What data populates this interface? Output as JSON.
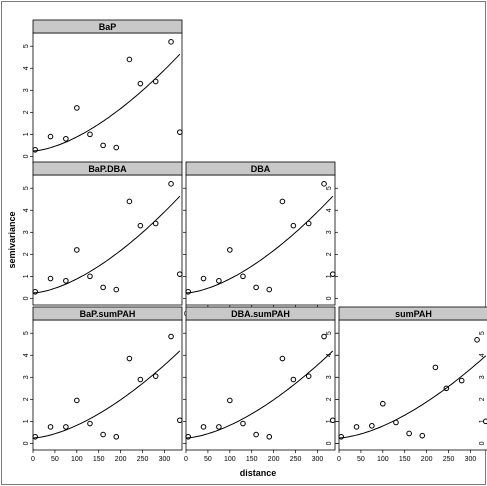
{
  "chart_data": {
    "type": "scatter",
    "xlabel": "distance",
    "ylabel": "semivariance",
    "xticks": [
      0,
      50,
      100,
      150,
      200,
      250,
      300
    ],
    "yticks": [
      0,
      1,
      2,
      3,
      4,
      5
    ],
    "xlim": [
      0,
      340
    ],
    "ylim": [
      -0.3,
      5.6
    ],
    "panels": [
      {
        "title": "BaP",
        "points": [
          [
            5,
            0.3
          ],
          [
            40,
            0.9
          ],
          [
            75,
            0.8
          ],
          [
            100,
            2.2
          ],
          [
            130,
            1.0
          ],
          [
            160,
            0.5
          ],
          [
            190,
            0.4
          ],
          [
            220,
            4.4
          ],
          [
            245,
            3.3
          ],
          [
            280,
            3.4
          ],
          [
            315,
            5.2
          ],
          [
            335,
            1.1
          ]
        ],
        "curve": {
          "nugget": 0.25,
          "slope": 0.0004,
          "power": 1.6
        }
      },
      {
        "title": "BaP.DBA",
        "points": [
          [
            5,
            0.3
          ],
          [
            40,
            0.9
          ],
          [
            75,
            0.8
          ],
          [
            100,
            2.2
          ],
          [
            130,
            1.0
          ],
          [
            160,
            0.5
          ],
          [
            190,
            0.4
          ],
          [
            220,
            4.4
          ],
          [
            245,
            3.3
          ],
          [
            280,
            3.4
          ],
          [
            315,
            5.2
          ],
          [
            335,
            1.1
          ]
        ],
        "curve": {
          "nugget": 0.25,
          "slope": 0.0004,
          "power": 1.6
        }
      },
      {
        "title": "DBA",
        "points": [
          [
            5,
            0.3
          ],
          [
            40,
            0.9
          ],
          [
            75,
            0.8
          ],
          [
            100,
            2.2
          ],
          [
            130,
            1.0
          ],
          [
            160,
            0.5
          ],
          [
            190,
            0.4
          ],
          [
            220,
            4.4
          ],
          [
            245,
            3.3
          ],
          [
            280,
            3.4
          ],
          [
            315,
            5.2
          ],
          [
            335,
            1.1
          ]
        ],
        "curve": {
          "nugget": 0.25,
          "slope": 0.0004,
          "power": 1.6
        }
      },
      {
        "title": "BaP.sumPAH",
        "points": [
          [
            5,
            0.3
          ],
          [
            40,
            0.75
          ],
          [
            75,
            0.75
          ],
          [
            100,
            1.95
          ],
          [
            130,
            0.9
          ],
          [
            160,
            0.4
          ],
          [
            190,
            0.3
          ],
          [
            220,
            3.85
          ],
          [
            245,
            2.9
          ],
          [
            280,
            3.05
          ],
          [
            315,
            4.85
          ],
          [
            335,
            1.05
          ]
        ],
        "curve": {
          "nugget": 0.25,
          "slope": 0.00036,
          "power": 1.6
        }
      },
      {
        "title": "DBA.sumPAH",
        "points": [
          [
            5,
            0.3
          ],
          [
            40,
            0.75
          ],
          [
            75,
            0.75
          ],
          [
            100,
            1.95
          ],
          [
            130,
            0.9
          ],
          [
            160,
            0.4
          ],
          [
            190,
            0.3
          ],
          [
            220,
            3.85
          ],
          [
            245,
            2.9
          ],
          [
            280,
            3.05
          ],
          [
            315,
            4.85
          ],
          [
            335,
            1.05
          ]
        ],
        "curve": {
          "nugget": 0.25,
          "slope": 0.00036,
          "power": 1.6
        }
      },
      {
        "title": "sumPAH",
        "points": [
          [
            5,
            0.3
          ],
          [
            40,
            0.75
          ],
          [
            75,
            0.8
          ],
          [
            100,
            1.8
          ],
          [
            130,
            0.95
          ],
          [
            160,
            0.45
          ],
          [
            190,
            0.35
          ],
          [
            220,
            3.45
          ],
          [
            245,
            2.5
          ],
          [
            280,
            2.85
          ],
          [
            315,
            4.7
          ],
          [
            335,
            1.0
          ]
        ],
        "curve": {
          "nugget": 0.25,
          "slope": 0.00034,
          "power": 1.6
        }
      }
    ]
  }
}
